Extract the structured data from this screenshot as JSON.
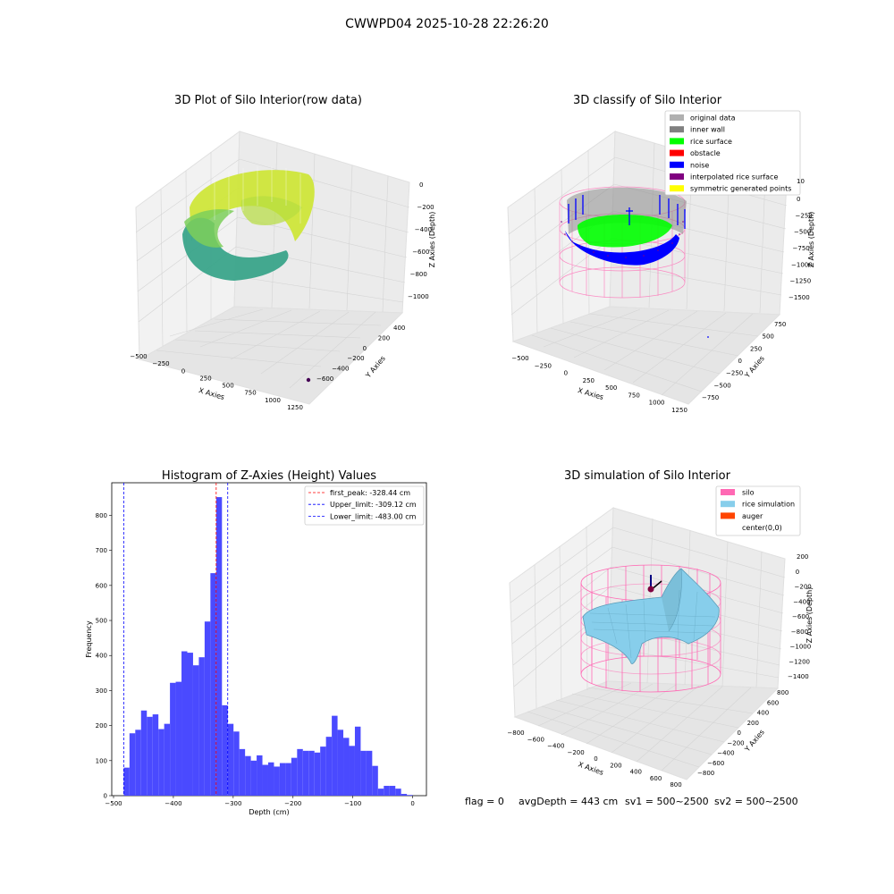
{
  "suptitle": "CWWPD04 2025-10-28 22:26:20",
  "colors": {
    "hist_bar": "#4a4aff",
    "peak_line": "#ff0000",
    "limit_line": "#0000ff",
    "silo_pink": "#ff69b4",
    "rice_blue": "#87ceeb",
    "auger": "#ff4500",
    "pane_light": "#f2f2f2",
    "pane_mid": "#ebebeb",
    "pane_dark": "#e5e5e5"
  },
  "panels": {
    "raw": {
      "title": "3D Plot of Silo Interior(row data)",
      "xlabel": "X Axies",
      "ylabel": "Y Axies",
      "zlabel": "Z Axies (Depth)",
      "xticks": [
        "−500",
        "−250",
        "0",
        "250",
        "500",
        "750",
        "1000",
        "1250"
      ],
      "yticks": [
        "−600",
        "−400",
        "−200",
        "0",
        "200",
        "400"
      ],
      "zticks": [
        "0",
        "−200",
        "−400",
        "−600",
        "−800",
        "−1000"
      ]
    },
    "classify": {
      "title": "3D classify of Silo Interior",
      "xlabel": "X Axies",
      "ylabel": "Y Axies",
      "zlabel": "Z Axies (Depth)",
      "xticks": [
        "−500",
        "−250",
        "0",
        "250",
        "500",
        "750",
        "1000",
        "1250"
      ],
      "yticks": [
        "−750",
        "−500",
        "−250",
        "0",
        "250",
        "500",
        "750"
      ],
      "zticks": [
        "0",
        "−250",
        "−500",
        "−750",
        "−1000",
        "−1250",
        "−1500"
      ],
      "ztop_tick": "10",
      "legend": [
        {
          "label": "original data",
          "color": "#b0b0b0"
        },
        {
          "label": "inner wall",
          "color": "#808080"
        },
        {
          "label": "rice surface",
          "color": "#00ff00"
        },
        {
          "label": "obstacle",
          "color": "#ff0000"
        },
        {
          "label": "noise",
          "color": "#0000ff"
        },
        {
          "label": "interpolated rice surface",
          "color": "#800080"
        },
        {
          "label": "symmetric generated points",
          "color": "#ffff00"
        }
      ]
    },
    "simulation": {
      "title": "3D simulation of Silo Interior",
      "xlabel": "X Axies",
      "ylabel": "Y Axies",
      "zlabel": "Z Axies (Depth)",
      "xticks": [
        "−800",
        "−600",
        "−400",
        "−200",
        "0",
        "200",
        "400",
        "600",
        "800"
      ],
      "yticks": [
        "−800",
        "−600",
        "−400",
        "−200",
        "0",
        "200",
        "400",
        "600",
        "800"
      ],
      "zticks": [
        "200",
        "0",
        "−200",
        "−400",
        "−600",
        "−800",
        "−1000",
        "−1200",
        "−1400"
      ],
      "legend": [
        {
          "label": "silo",
          "color": "#ff69b4"
        },
        {
          "label": "rice simulation",
          "color": "#87ceeb"
        },
        {
          "label": "auger",
          "color": "#ff4500"
        },
        {
          "label": "center(0,0)",
          "color": ""
        }
      ],
      "status": {
        "flag": "flag = 0",
        "avg": "avgDepth = 443 cm",
        "sv1": "sv1 = 500~2500",
        "sv2": "sv2 = 500~2500"
      }
    }
  },
  "chart_data": {
    "type": "bar",
    "title": "Histogram of Z-Axies (Height) Values",
    "xlabel": "Depth (cm)",
    "ylabel": "Frequency",
    "xlim": [
      -503,
      23
    ],
    "ylim": [
      0,
      893
    ],
    "xticks": [
      -500,
      -400,
      -300,
      -200,
      -100,
      0
    ],
    "yticks": [
      0,
      100,
      200,
      300,
      400,
      500,
      600,
      700,
      800
    ],
    "bin_start": -483,
    "bin_width": 9.66,
    "values": [
      80,
      178,
      188,
      243,
      225,
      232,
      190,
      205,
      322,
      325,
      412,
      408,
      372,
      395,
      497,
      635,
      852,
      258,
      205,
      183,
      133,
      113,
      100,
      115,
      88,
      95,
      83,
      93,
      93,
      108,
      133,
      128,
      128,
      123,
      140,
      168,
      228,
      188,
      165,
      142,
      197,
      128,
      128,
      85,
      20,
      28,
      28,
      20,
      5,
      2
    ],
    "vlines": [
      {
        "label": "first_peak: -328.44 cm",
        "x": -328.44,
        "color": "#ff0000"
      },
      {
        "label": "Upper_limit: -309.12 cm",
        "x": -309.12,
        "color": "#0000ff"
      },
      {
        "label": "Lower_limit: -483.00 cm",
        "x": -483.0,
        "color": "#0000ff"
      }
    ]
  }
}
